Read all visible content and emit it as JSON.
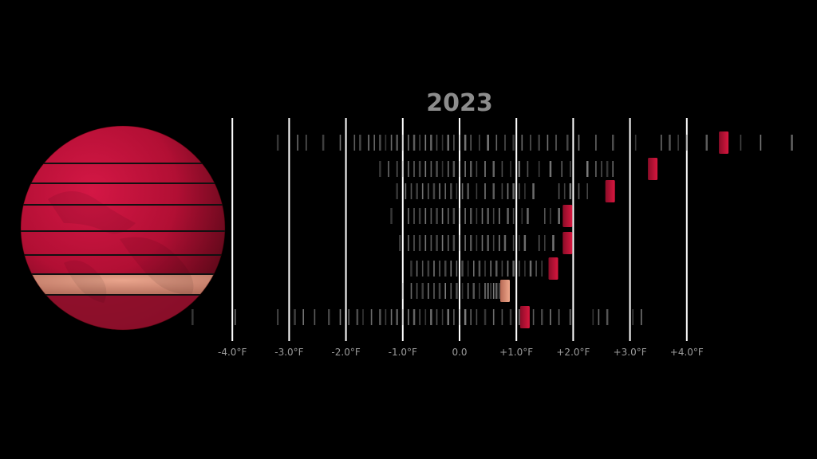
{
  "chart_data": {
    "type": "scatter",
    "title": "2023",
    "xlabel": "",
    "ylabel": "",
    "xlim": [
      -4.0,
      4.0
    ],
    "grid": true,
    "x_ticks": [
      {
        "value": -4,
        "label": "-4.0°F"
      },
      {
        "value": -3,
        "label": "-3.0°F"
      },
      {
        "value": -2,
        "label": "-2.0°F"
      },
      {
        "value": -1,
        "label": "-1.0°F"
      },
      {
        "value": 0,
        "label": "0.0"
      },
      {
        "value": 1,
        "label": "+1.0°F"
      },
      {
        "value": 2,
        "label": "+2.0°F"
      },
      {
        "value": 3,
        "label": "+3.0°F"
      },
      {
        "value": 4,
        "label": "+4.0°F"
      }
    ],
    "bands": [
      {
        "current": 4.65,
        "history": [
          -3.2,
          -2.85,
          -2.7,
          -2.4,
          -2.1,
          -1.85,
          -1.75,
          -1.6,
          -1.5,
          -1.4,
          -1.3,
          -1.2,
          -1.1,
          -1.0,
          -0.9,
          -0.8,
          -0.7,
          -0.6,
          -0.5,
          -0.4,
          -0.3,
          -0.2,
          -0.1,
          0.0,
          0.1,
          0.2,
          0.35,
          0.5,
          0.65,
          0.8,
          0.95,
          1.1,
          1.25,
          1.4,
          1.55,
          1.7,
          1.9,
          2.1,
          2.4,
          2.7,
          3.1,
          3.55,
          3.7,
          3.85,
          4.0,
          4.35,
          4.95,
          5.3,
          5.85
        ]
      },
      {
        "current": 3.4,
        "history": [
          -1.4,
          -1.25,
          -1.1,
          -1.0,
          -0.9,
          -0.8,
          -0.7,
          -0.6,
          -0.5,
          -0.4,
          -0.3,
          -0.2,
          -0.1,
          0.0,
          0.1,
          0.2,
          0.3,
          0.45,
          0.6,
          0.75,
          0.9,
          1.05,
          1.2,
          1.4,
          1.6,
          1.8,
          1.95,
          2.25,
          2.4,
          2.5,
          2.6,
          2.7
        ]
      },
      {
        "current": 2.65,
        "history": [
          -1.1,
          -0.95,
          -0.85,
          -0.75,
          -0.65,
          -0.55,
          -0.45,
          -0.35,
          -0.25,
          -0.15,
          -0.05,
          0.05,
          0.15,
          0.3,
          0.45,
          0.6,
          0.75,
          0.85,
          0.95,
          1.05,
          1.15,
          1.3,
          1.75,
          1.85,
          1.95,
          2.1,
          2.25
        ]
      },
      {
        "current": 1.9,
        "history": [
          -1.2,
          -0.9,
          -0.8,
          -0.7,
          -0.6,
          -0.5,
          -0.4,
          -0.3,
          -0.2,
          -0.1,
          0.0,
          0.1,
          0.2,
          0.3,
          0.4,
          0.5,
          0.6,
          0.7,
          0.85,
          0.95,
          1.1,
          1.2,
          1.5,
          1.6,
          1.75
        ]
      },
      {
        "current": 1.9,
        "history": [
          -1.05,
          -0.9,
          -0.8,
          -0.7,
          -0.6,
          -0.5,
          -0.4,
          -0.3,
          -0.2,
          -0.1,
          0.0,
          0.1,
          0.2,
          0.3,
          0.4,
          0.5,
          0.6,
          0.7,
          0.8,
          0.95,
          1.05,
          1.15,
          1.4,
          1.5,
          1.65
        ]
      },
      {
        "current": 1.65,
        "history": [
          -0.85,
          -0.75,
          -0.65,
          -0.55,
          -0.45,
          -0.35,
          -0.25,
          -0.15,
          -0.05,
          0.05,
          0.15,
          0.25,
          0.35,
          0.45,
          0.55,
          0.65,
          0.75,
          0.85,
          0.95,
          1.05,
          1.15,
          1.25,
          1.35,
          1.45
        ]
      },
      {
        "current": 0.8,
        "history": [
          -1.0,
          -0.85,
          -0.75,
          -0.65,
          -0.55,
          -0.45,
          -0.35,
          -0.25,
          -0.15,
          -0.05,
          0.05,
          0.15,
          0.25,
          0.35,
          0.45,
          0.5,
          0.55,
          0.6,
          0.65,
          0.7
        ]
      },
      {
        "current": 1.15,
        "history": [
          -4.7,
          -3.95,
          -3.2,
          -2.9,
          -2.75,
          -2.55,
          -2.3,
          -2.1,
          -1.95,
          -1.8,
          -1.7,
          -1.55,
          -1.4,
          -1.3,
          -1.2,
          -1.1,
          -1.0,
          -0.9,
          -0.8,
          -0.7,
          -0.6,
          -0.5,
          -0.4,
          -0.3,
          -0.2,
          -0.1,
          0.0,
          0.1,
          0.2,
          0.3,
          0.45,
          0.6,
          0.75,
          0.9,
          1.05,
          1.3,
          1.45,
          1.6,
          1.75,
          1.95,
          2.35,
          2.45,
          2.6,
          3.05,
          3.2
        ]
      }
    ],
    "colors": {
      "globe_red": "#c4123a",
      "globe_dark": "#6e0a1e",
      "globe_pink": "#e4907a",
      "marker_red": "#c8133c",
      "marker_pink": "#e89a80",
      "history_bar": "#9a9a9a",
      "gridline": "#ffffff",
      "background": "#000000"
    }
  }
}
